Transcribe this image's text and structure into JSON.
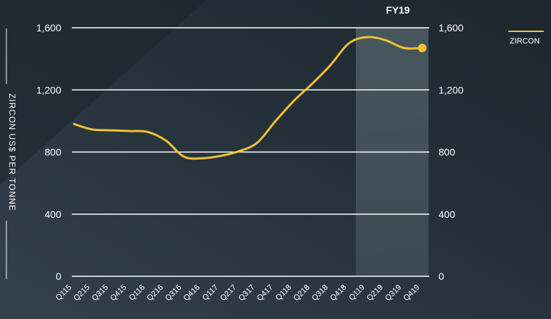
{
  "chart_data": {
    "type": "line",
    "ylabel": "ZIRCON US$ PER TONNE",
    "ylim": [
      0,
      1600
    ],
    "yticks": [
      "0",
      "400",
      "800",
      "1,200",
      "1,600"
    ],
    "ytick_values": [
      0,
      400,
      800,
      1200,
      1600
    ],
    "categories": [
      "Q115",
      "Q215",
      "Q315",
      "Q415",
      "Q116",
      "Q216",
      "Q316",
      "Q416",
      "Q117",
      "Q217",
      "Q317",
      "Q417",
      "Q118",
      "Q218",
      "Q318",
      "Q418",
      "Q119",
      "Q219",
      "Q319",
      "Q419"
    ],
    "series": [
      {
        "name": "ZIRCON",
        "values": [
          980,
          945,
          940,
          935,
          930,
          875,
          770,
          760,
          775,
          805,
          860,
          1000,
          1130,
          1240,
          1360,
          1500,
          1540,
          1520,
          1470,
          1470
        ]
      }
    ],
    "highlight": {
      "label": "FY19",
      "from": "Q119",
      "to": "Q419"
    },
    "grid": true,
    "legend": "top-right"
  },
  "colors": {
    "background": "#1f2a30",
    "line": "#f2c230",
    "grid": "#ffffff",
    "highlight": "#48565c"
  }
}
